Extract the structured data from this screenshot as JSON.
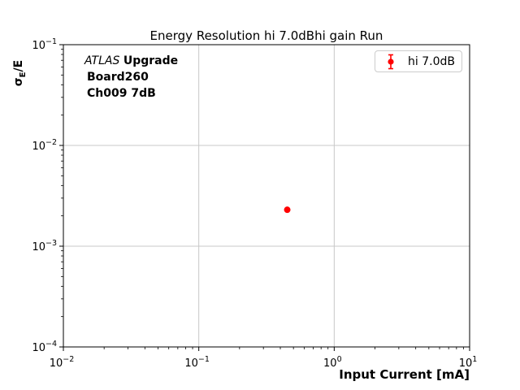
{
  "annotation": {
    "line1_italic": "ATLAS",
    "line1_bold": "Upgrade",
    "line2": "Board260",
    "line3": "Ch009 7dB"
  },
  "ylabel_parts": {
    "sigma": "σ",
    "sub": "E",
    "rest": "/E"
  },
  "colors": {
    "point": "#ff0000",
    "grid": "#c8c8c8",
    "spine": "#000000",
    "legend_border": "#cccccc",
    "text": "#000000"
  },
  "chart_data": {
    "type": "scatter",
    "title": "Energy Resolution hi 7.0dBhi gain Run",
    "xlabel": "Input Current [mA]",
    "ylabel": "sigma_E/E",
    "xscale": "log",
    "yscale": "log",
    "xlim": [
      0.01,
      10
    ],
    "ylim": [
      0.0001,
      0.1
    ],
    "x_tick_exponents": [
      -2,
      -1,
      0,
      1
    ],
    "y_tick_exponents": [
      -4,
      -3,
      -2,
      -1
    ],
    "grid": true,
    "grid_which": "major",
    "legend_position": "upper right",
    "series": [
      {
        "name": "hi 7.0dB",
        "color": "#ff0000",
        "marker": "errorbar-dot",
        "x": [
          0.45
        ],
        "y": [
          0.0023
        ]
      }
    ]
  }
}
